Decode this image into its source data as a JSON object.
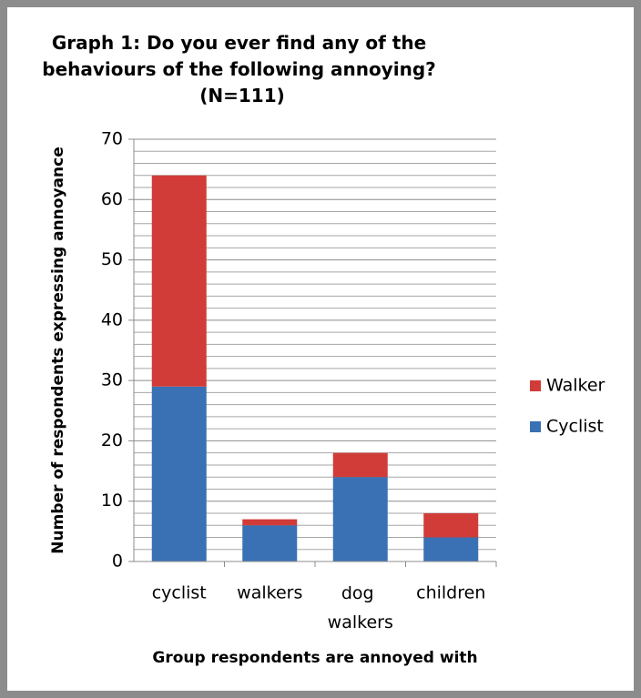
{
  "chart_data": {
    "type": "bar",
    "stacked": true,
    "title": "Graph 1: Do you ever find any of the behaviours of the following annoying? (N=111)",
    "xlabel": "Group respondents are annoyed with",
    "ylabel": "Number of respondents  expressing annoyance",
    "categories": [
      "cyclist",
      "walkers",
      "dog walkers",
      "children"
    ],
    "series": [
      {
        "name": "Cyclist",
        "color": "#3a70b4",
        "values": [
          29,
          6,
          14,
          4
        ]
      },
      {
        "name": "Walker",
        "color": "#d13c38",
        "values": [
          35,
          1,
          4,
          4
        ]
      }
    ],
    "ylim": [
      0,
      70
    ],
    "yticks": [
      0,
      10,
      20,
      30,
      40,
      50,
      60,
      70
    ],
    "minor_yticks": [
      2,
      4,
      6,
      8,
      12,
      14,
      16,
      18,
      22,
      24,
      26,
      28,
      32,
      34,
      36,
      38,
      42,
      44,
      46,
      48,
      52,
      54,
      56,
      58,
      62,
      64,
      66,
      68
    ],
    "grid": true,
    "legend": "right"
  }
}
